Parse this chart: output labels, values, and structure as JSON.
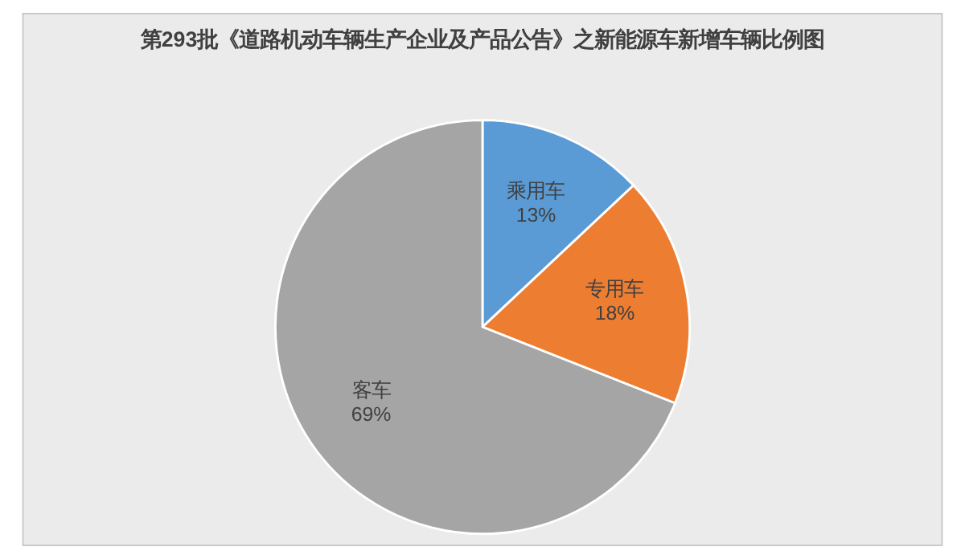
{
  "chart_data": {
    "type": "pie",
    "title": "第293批《道路机动车辆生产企业及产品公告》之新能源车新增车辆比例图",
    "categories": [
      "乘用车",
      "专用车",
      "客车"
    ],
    "values": [
      13,
      18,
      69
    ],
    "colors": [
      "#5b9bd5",
      "#ed7d31",
      "#a5a5a5"
    ],
    "value_labels": [
      "13%",
      "18%",
      "69%"
    ],
    "legend": false
  }
}
